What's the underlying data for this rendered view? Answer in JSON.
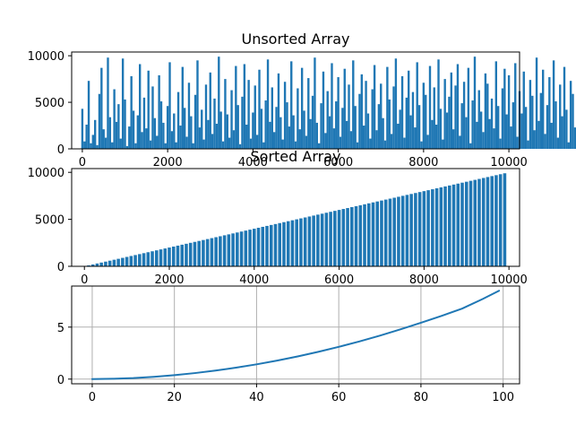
{
  "figure": {
    "background": "#ffffff",
    "bar_color": "#1f77b4",
    "line_color": "#1f77b4",
    "grid_color": "#b0b0b0"
  },
  "chart_data": [
    {
      "type": "bar",
      "title": "Unsorted Array",
      "xlim": [
        -250,
        10250
      ],
      "ylim": [
        0,
        10400
      ],
      "xticks": [
        0,
        2000,
        4000,
        6000,
        8000,
        10000
      ],
      "yticks": [
        0,
        5000,
        10000
      ],
      "xtick_labels": [
        "0",
        "2000",
        "4000",
        "6000",
        "8000",
        "10000"
      ],
      "ytick_labels": [
        "0",
        "5000",
        "10000"
      ],
      "grid": false,
      "series": [
        {
          "bar_width": 50,
          "x_start": 0,
          "x_step": 50,
          "values": [
            4300,
            800,
            2600,
            7300,
            600,
            1500,
            3100,
            400,
            5900,
            8700,
            2100,
            1200,
            9800,
            3400,
            700,
            6400,
            2900,
            4800,
            1100,
            9700,
            5300,
            300,
            2400,
            7800,
            4100,
            600,
            3600,
            9100,
            1800,
            5500,
            2200,
            8400,
            900,
            6700,
            3300,
            1400,
            7900,
            5100,
            2800,
            600,
            4600,
            9300,
            1900,
            3800,
            700,
            6100,
            2500,
            8800,
            4400,
            1300,
            7100,
            3500,
            600,
            5800,
            9500,
            2300,
            4200,
            1000,
            6900,
            3100,
            8200,
            1600,
            5400,
            2700,
            9900,
            4000,
            800,
            7500,
            3700,
            1200,
            6300,
            2000,
            8900,
            4700,
            500,
            5600,
            9100,
            2600,
            7400,
            1100,
            3900,
            6800,
            1500,
            8500,
            4300,
            700,
            5200,
            9600,
            2900,
            6600,
            1800,
            4500,
            8100,
            3400,
            1000,
            7200,
            5000,
            2400,
            9400,
            3600,
            800,
            6500,
            2100,
            8700,
            4100,
            1400,
            7600,
            3200,
            5700,
            9800,
            2800,
            600,
            4900,
            8300,
            1700,
            6200,
            3500,
            9200,
            2200,
            5100,
            7700,
            1300,
            4400,
            8600,
            3000,
            6900,
            1900,
            9500,
            4600,
            700,
            5900,
            8000,
            2500,
            7300,
            3800,
            1100,
            6400,
            9000,
            2000,
            4800,
            7000,
            3300,
            900,
            8800,
            5300,
            1600,
            6700,
            9700,
            2700,
            4200,
            7800,
            1200,
            5500,
            8400,
            3600,
            6100,
            2300,
            9300,
            4700,
            800,
            7100,
            5800,
            1500,
            8900,
            3100,
            6600,
            2600,
            9600,
            4300,
            1000,
            7500,
            3900,
            5600,
            8200,
            2100,
            6800,
            9100,
            1400,
            4900,
            7200,
            3400,
            8700,
            600,
            5200,
            9900,
            2900,
            6300,
            4000,
            1800,
            8100,
            7000,
            3200,
            5400,
            2200,
            9400,
            4600,
            1100,
            6500,
            8600,
            3700,
            7900,
            2400,
            5000,
            9200,
            1300,
            6200,
            3800,
            8300,
            4500,
            900,
            7400,
            5700,
            2000,
            9800,
            3000,
            6000,
            8500,
            1600,
            4700,
            7700,
            2800,
            9500,
            5100,
            1200,
            6900,
            3500,
            8800,
            4200,
            700,
            7300,
            5900,
            2300,
            9700,
            3300,
            6700,
            1900,
            8400,
            4800,
            1000,
            5500,
            9000,
            2600,
            7600,
            3900,
            6400,
            1500,
            8700,
            5200,
            2100,
            9300,
            4400,
            800,
            7100,
            3600,
            6100,
            9900,
            2700,
            5800,
            8100,
            1300,
            4100,
            7800,
            3100,
            6600,
            9400,
            2200,
            5300,
            8900,
            1700,
            4600,
            7400,
            3400,
            6300,
            9600,
            2500,
            5000,
            8000,
            1100,
            4300,
            7200,
            3700,
            6800,
            9100,
            2000,
            5400,
            8600,
            1400,
            4900,
            7900,
            3200,
            6200,
            9800,
            2900,
            5600,
            8300,
            1800,
            4500,
            7500,
            3000,
            6500,
            9200,
            2400,
            5100,
            8800,
            1000,
            4700,
            7300,
            3500,
            6900,
            9700,
            2100,
            5700,
            8200,
            1600,
            4000,
            7700,
            3300,
            6000,
            9500,
            2800,
            5200,
            8500,
            1200,
            4400,
            7000,
            3800,
            6400,
            9000,
            2300,
            5900,
            8700,
            1500,
            4800,
            7600,
            3100,
            6700,
            9300,
            2600,
            5500,
            8400,
            900,
            4200,
            7100,
            3600,
            6100,
            9900,
            2000,
            5300,
            8100
          ],
          "name": ""
        }
      ]
    },
    {
      "type": "bar",
      "title": "Sorted Array",
      "xlim": [
        -300,
        10250
      ],
      "ylim": [
        0,
        10400
      ],
      "xticks": [
        0,
        2000,
        4000,
        6000,
        8000,
        10000
      ],
      "yticks": [
        0,
        5000,
        10000
      ],
      "xtick_labels": [
        "0",
        "2000",
        "4000",
        "6000",
        "8000",
        "10000"
      ],
      "ytick_labels": [
        "0",
        "5000",
        "10000"
      ],
      "grid": false,
      "series": [
        {
          "bar_width": 75,
          "x_start": 0,
          "x_step": 100,
          "values": [
            0,
            100,
            200,
            300,
            400,
            500,
            600,
            700,
            800,
            900,
            1000,
            1100,
            1200,
            1300,
            1400,
            1500,
            1600,
            1700,
            1800,
            1900,
            2000,
            2100,
            2200,
            2300,
            2400,
            2500,
            2600,
            2700,
            2800,
            2900,
            3000,
            3100,
            3200,
            3300,
            3400,
            3500,
            3600,
            3700,
            3800,
            3900,
            4000,
            4100,
            4200,
            4300,
            4400,
            4500,
            4600,
            4700,
            4800,
            4900,
            5000,
            5100,
            5200,
            5300,
            5400,
            5500,
            5600,
            5700,
            5800,
            5900,
            6000,
            6100,
            6200,
            6300,
            6400,
            6500,
            6600,
            6700,
            6800,
            6900,
            7000,
            7100,
            7200,
            7300,
            7400,
            7500,
            7600,
            7700,
            7800,
            7900,
            8000,
            8100,
            8200,
            8300,
            8400,
            8500,
            8600,
            8700,
            8800,
            8900,
            9000,
            9100,
            9200,
            9300,
            9400,
            9500,
            9600,
            9700,
            9800,
            9900
          ],
          "name": ""
        }
      ]
    },
    {
      "type": "line",
      "title": "",
      "xlim": [
        -5,
        104
      ],
      "ylim": [
        -0.45,
        8.95
      ],
      "xticks": [
        0,
        20,
        40,
        60,
        80,
        100
      ],
      "yticks": [
        0,
        5
      ],
      "xtick_labels": [
        "0",
        "20",
        "40",
        "60",
        "80",
        "100"
      ],
      "ytick_labels": [
        "0",
        "5"
      ],
      "grid": true,
      "series": [
        {
          "name": "",
          "x": [
            0,
            5,
            10,
            15,
            20,
            25,
            30,
            35,
            40,
            45,
            50,
            55,
            60,
            65,
            70,
            75,
            80,
            85,
            90,
            95,
            99
          ],
          "y": [
            0.0,
            0.03,
            0.1,
            0.22,
            0.38,
            0.58,
            0.82,
            1.1,
            1.42,
            1.78,
            2.18,
            2.62,
            3.1,
            3.62,
            4.18,
            4.78,
            5.42,
            6.08,
            6.78,
            7.7,
            8.5
          ]
        }
      ]
    }
  ]
}
